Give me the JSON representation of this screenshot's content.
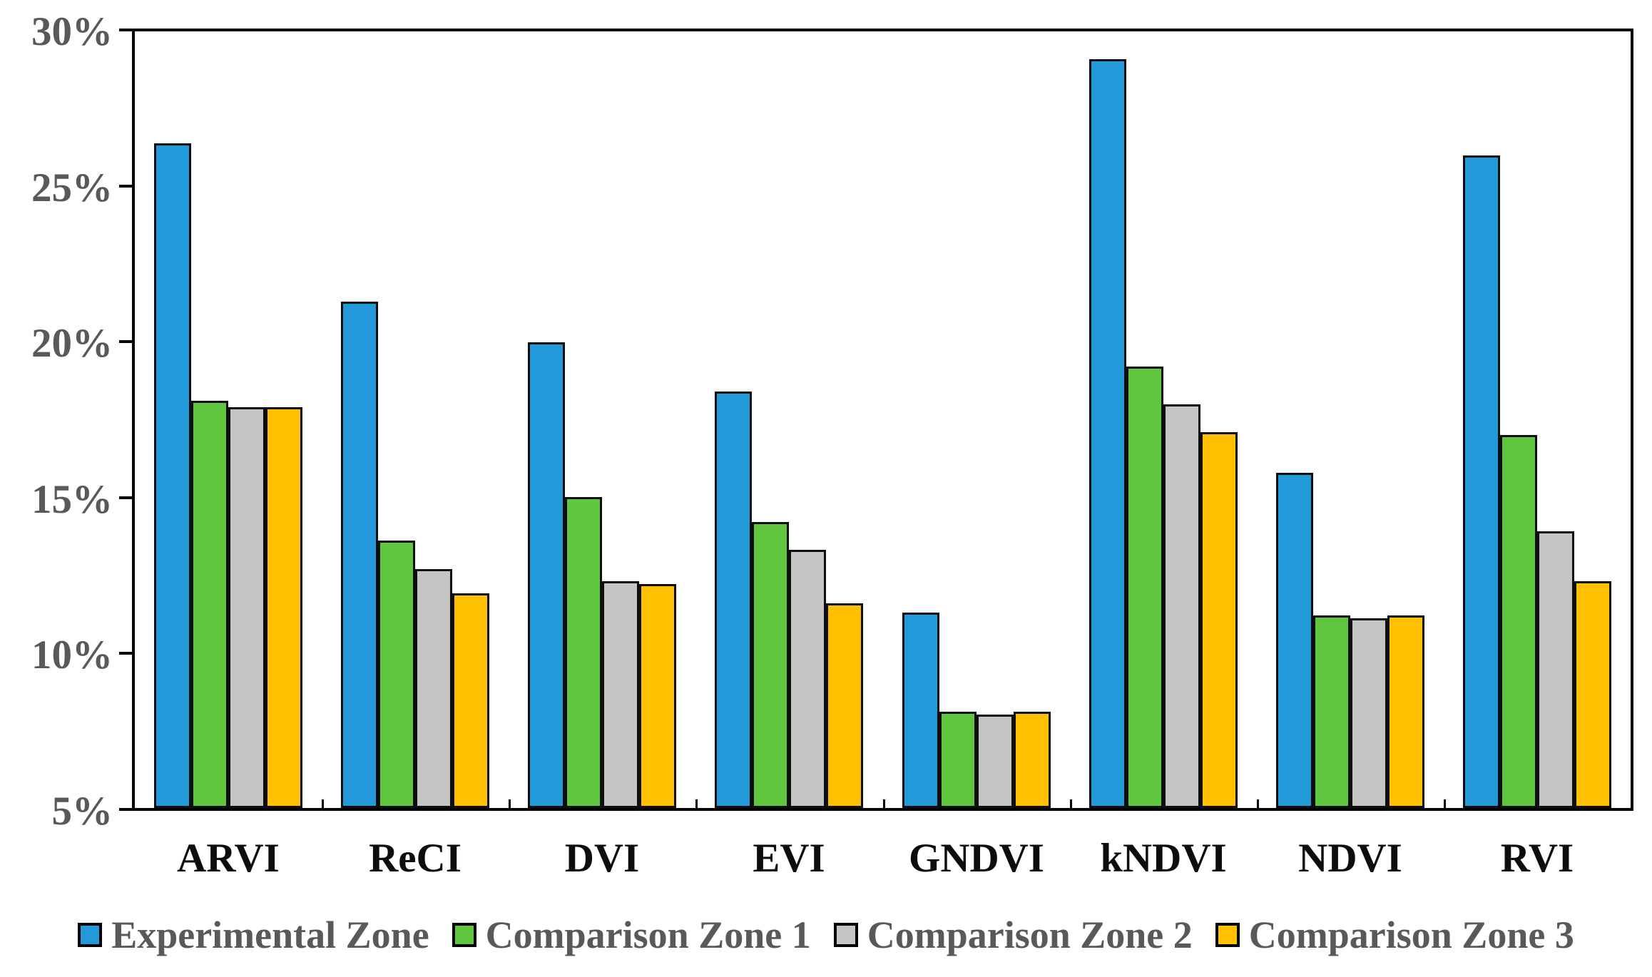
{
  "chart_data": {
    "type": "bar",
    "title": "",
    "xlabel": "",
    "ylabel": "",
    "categories": [
      "ARVI",
      "ReCI",
      "DVI",
      "EVI",
      "GNDVI",
      "kNDVI",
      "NDVI",
      "RVI"
    ],
    "series": [
      {
        "name": "Experimental Zone",
        "color": "#2299D8",
        "values": [
          26.4,
          21.3,
          20.0,
          18.4,
          11.3,
          29.1,
          15.8,
          26.0
        ]
      },
      {
        "name": "Comparison Zone 1",
        "color": "#5FC63E",
        "values": [
          18.1,
          13.6,
          15.0,
          14.2,
          8.1,
          19.2,
          11.2,
          17.0
        ]
      },
      {
        "name": "Comparison Zone 2",
        "color": "#C5C5C5",
        "values": [
          17.9,
          12.7,
          12.3,
          13.3,
          8.0,
          18.0,
          11.1,
          13.9
        ]
      },
      {
        "name": "Comparison Zone 3",
        "color": "#FFC000",
        "values": [
          17.9,
          11.9,
          12.2,
          11.6,
          8.1,
          17.1,
          11.2,
          12.3
        ]
      }
    ],
    "ylim": [
      5,
      30
    ],
    "y_ticks": [
      5,
      10,
      15,
      20,
      25,
      30
    ],
    "y_tick_labels": [
      "5%",
      "10%",
      "15%",
      "20%",
      "25%",
      "30%"
    ],
    "grid": false,
    "legend_position": "bottom",
    "bar_border_color": "#0d0d0d",
    "axis_color": "#000000",
    "y_label_color": "#595959",
    "x_label_color": "#0d0d0d",
    "legend_text_color": "#595959"
  }
}
